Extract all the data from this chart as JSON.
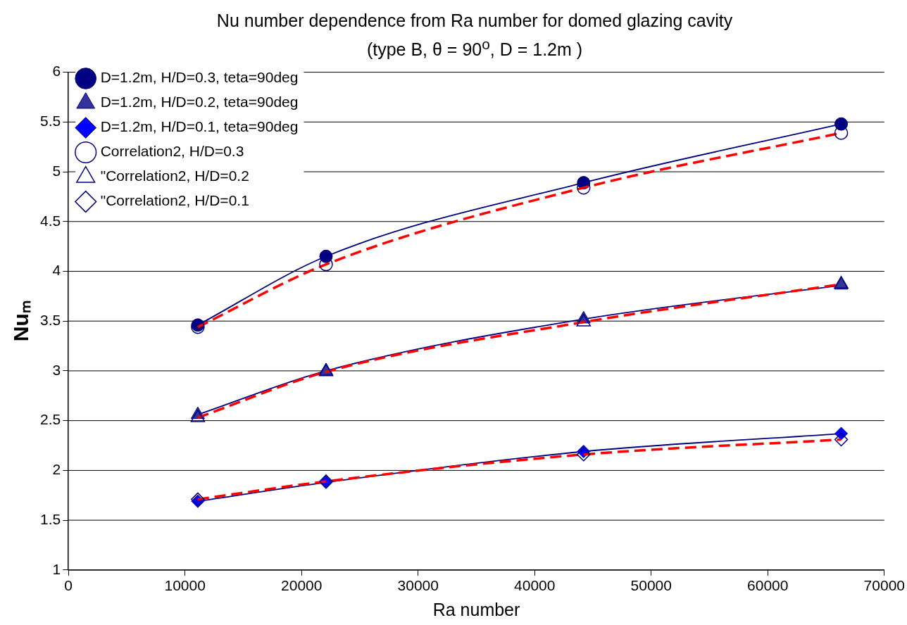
{
  "chart_data": {
    "type": "line",
    "title": "Nu number dependence from Ra number for domed glazing cavity",
    "subtitle": "(type B, θ = 90$^{o}$, D = 1.2m )",
    "xlabel": "Ra number",
    "ylabel": "Nuₘ",
    "x": [
      11100,
      22100,
      44200,
      66300
    ],
    "series": [
      {
        "name": "D=1.2m, H/D=0.3, teta=90deg",
        "color": "#000080",
        "marker": "circle",
        "line_style": "solid",
        "values": [
          3.46,
          4.15,
          4.89,
          5.48
        ]
      },
      {
        "name": "D=1.2m, H/D=0.2, teta=90deg",
        "color": "#000080",
        "marker": "triangle",
        "line_style": "solid",
        "values": [
          2.56,
          3.0,
          3.52,
          3.86
        ]
      },
      {
        "name": "D=1.2m, H/D=0.1, teta=90deg",
        "color": "#000080",
        "marker": "diamond",
        "line_style": "solid",
        "values": [
          1.69,
          1.88,
          2.19,
          2.37
        ]
      },
      {
        "name": "Correlation2, H/D=0.3",
        "color": "#ff0000",
        "marker": "circle",
        "line_style": "dashed",
        "values": [
          3.44,
          4.07,
          4.84,
          5.39
        ]
      },
      {
        "name": "\"Correlation2, H/D=0.2",
        "color": "#ff0000",
        "marker": "triangle",
        "line_style": "dashed",
        "values": [
          2.53,
          2.99,
          3.49,
          3.87
        ]
      },
      {
        "name": "\"Correlation2, H/D=0.1",
        "color": "#ff0000",
        "marker": "diamond",
        "line_style": "dashed",
        "values": [
          1.71,
          1.89,
          2.16,
          2.31
        ]
      }
    ],
    "xlim": [
      0,
      70000
    ],
    "xticks": [
      0,
      10000,
      20000,
      30000,
      40000,
      50000,
      60000,
      70000
    ],
    "ylim": [
      1,
      6
    ],
    "yticks": [
      1,
      1.5,
      2,
      2.5,
      3,
      3.5,
      4,
      4.5,
      5,
      5.5,
      6
    ],
    "grid": "y",
    "legend": "top left"
  }
}
